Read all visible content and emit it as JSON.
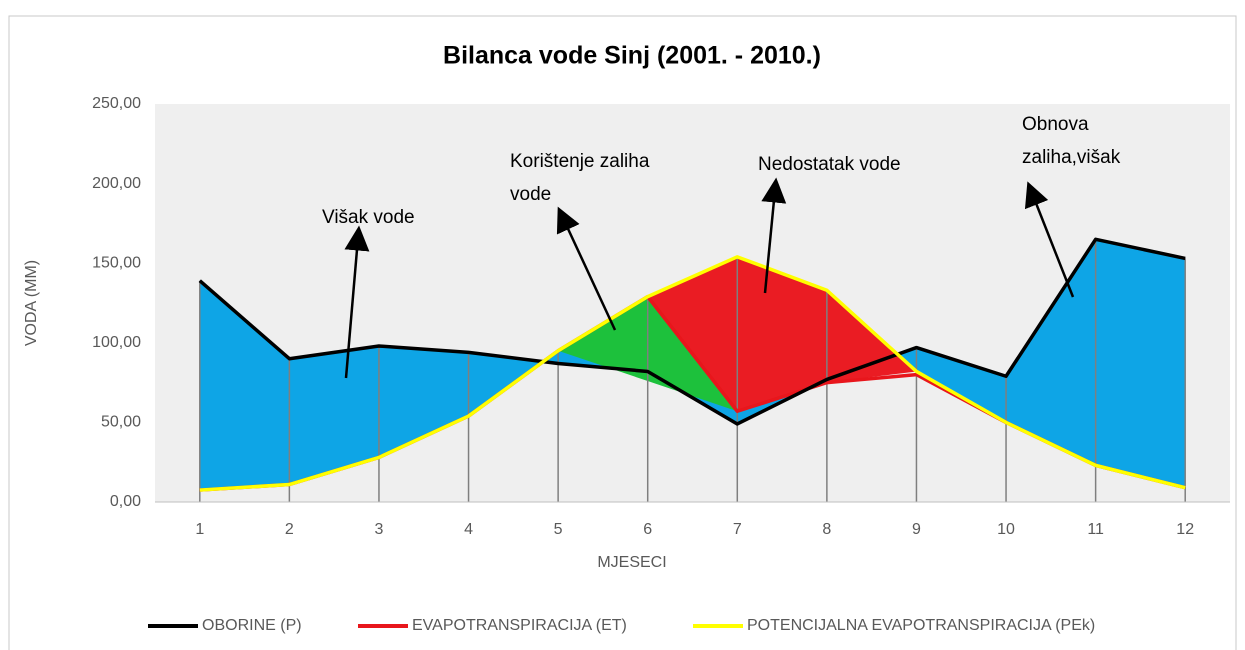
{
  "chart_data": {
    "type": "line",
    "title": "Bilanca  vode Sinj (2001. - 2010.)",
    "x_label": "MJESECI",
    "y_label": "VODA (MM)",
    "categories": [
      "1",
      "2",
      "3",
      "4",
      "5",
      "6",
      "7",
      "8",
      "9",
      "10",
      "11",
      "12"
    ],
    "series": [
      {
        "name": "OBORINE (P)",
        "color": "#000000",
        "values": [
          139,
          90,
          98,
          94,
          87,
          82,
          49,
          77,
          97,
          79,
          165,
          153
        ]
      },
      {
        "name": "EVAPOTRANSPIRACIJA (ET)",
        "color": "#e8161c",
        "values": [
          7.5,
          11,
          28,
          54,
          95,
          129,
          57,
          75,
          80,
          50,
          23,
          9
        ]
      },
      {
        "name": "POTENCIJALNA EVAPOTRANSPIRACIJA (PEk)",
        "color": "#ffff00",
        "values": [
          7.5,
          11,
          28,
          54,
          95,
          129,
          154,
          133,
          82,
          50,
          23,
          9
        ]
      }
    ],
    "ylim": [
      0,
      250
    ],
    "yticks": [
      {
        "value": 0,
        "label": "0,00"
      },
      {
        "value": 50,
        "label": "50,00"
      },
      {
        "value": 100,
        "label": "100,00"
      },
      {
        "value": 150,
        "label": "150,00"
      },
      {
        "value": 200,
        "label": "200,00"
      },
      {
        "value": 250,
        "label": "250,00"
      }
    ],
    "grid": false,
    "legend": "bottom",
    "annotations": [
      {
        "lines": [
          "Višak vode"
        ]
      },
      {
        "lines": [
          "Korištenje zaliha",
          "vode"
        ]
      },
      {
        "lines": [
          "Nedostatak vode"
        ]
      },
      {
        "lines": [
          "Obnova",
          "zaliha,višak"
        ]
      }
    ]
  }
}
